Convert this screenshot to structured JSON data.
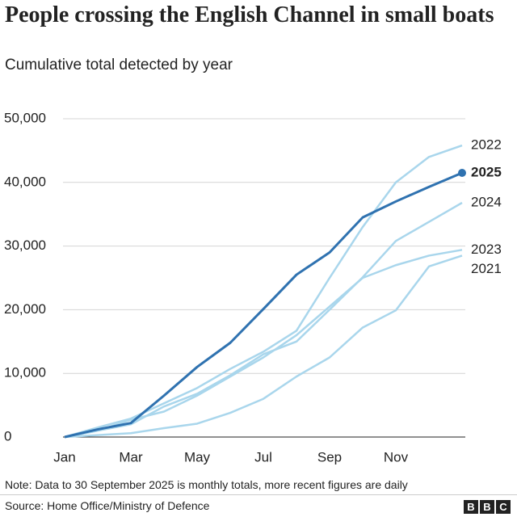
{
  "chart_data": {
    "type": "line",
    "title": "People crossing the English Channel in small boats",
    "subtitle": "Cumulative total detected by year",
    "categories": [
      "Jan",
      null,
      "Mar",
      null,
      "May",
      null,
      "Jul",
      null,
      "Sep",
      null,
      "Nov",
      null,
      null
    ],
    "ylim": [
      0,
      50000
    ],
    "yticks": [
      0,
      {
        "value": 10000,
        "label": "10,000"
      },
      {
        "value": 20000,
        "label": "20,000"
      },
      {
        "value": 30000,
        "label": "30,000"
      },
      {
        "value": 40000,
        "label": "40,000"
      },
      {
        "value": 50000,
        "label": "50,000"
      }
    ],
    "grid": true,
    "series": [
      {
        "name": "2022",
        "color": "#a9d6ec",
        "values": [
          0,
          1500,
          2900,
          5300,
          7700,
          10700,
          13400,
          16700,
          25000,
          33000,
          40000,
          44000,
          45800
        ]
      },
      {
        "name": "2024",
        "color": "#a9d6ec",
        "values": [
          0,
          1000,
          2000,
          4800,
          6800,
          9700,
          13000,
          15000,
          20000,
          25100,
          30800,
          33800,
          36800
        ]
      },
      {
        "name": "2023",
        "color": "#a9d6ec",
        "values": [
          0,
          1000,
          2700,
          4000,
          6500,
          9500,
          12500,
          16000,
          20500,
          25000,
          27000,
          28500,
          29400
        ]
      },
      {
        "name": "2021",
        "color": "#a9d6ec",
        "values": [
          0,
          300,
          600,
          1400,
          2100,
          3800,
          6000,
          9500,
          12500,
          17200,
          19900,
          26800,
          28500
        ]
      },
      {
        "name": "2025",
        "color": "#2f72b0",
        "values": [
          0,
          1200,
          2200,
          6500,
          11000,
          14800,
          20100,
          25500,
          29000,
          34500,
          37000,
          39300,
          41500
        ]
      }
    ],
    "note": "Note: Data to 30 September 2025 is monthly totals, more recent figures are daily",
    "source": "Source: Home Office/Ministry of Defence"
  }
}
